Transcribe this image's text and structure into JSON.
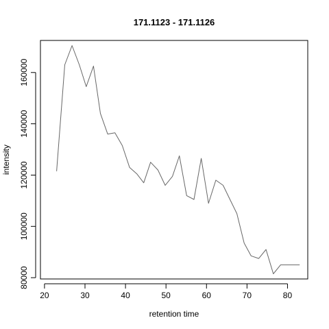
{
  "chart_data": {
    "type": "line",
    "title": "171.1123 - 171.1126",
    "xlabel": "retention time",
    "ylabel": "intensity",
    "xlim": [
      19,
      85
    ],
    "ylim": [
      79500,
      172500
    ],
    "x_ticks": [
      20,
      30,
      40,
      50,
      60,
      70,
      80
    ],
    "y_ticks": [
      80000,
      100000,
      120000,
      140000,
      160000
    ],
    "line_color": "#666666",
    "grid": false,
    "series": [
      {
        "x": [
          23.0,
          25.0,
          26.8,
          28.6,
          30.3,
          32.1,
          33.8,
          35.6,
          37.4,
          39.2,
          41.0,
          42.8,
          44.5,
          46.2,
          48.0,
          49.8,
          51.6,
          53.3,
          55.1,
          56.9,
          58.7,
          60.5,
          62.3,
          64.1,
          65.8,
          67.5,
          69.3,
          71.0,
          72.9,
          74.7,
          76.5,
          78.3,
          80.0,
          81.8,
          83.0
        ],
        "y": [
          121500,
          163000,
          170500,
          163000,
          154500,
          162500,
          144000,
          136000,
          136500,
          131500,
          123000,
          120500,
          117000,
          125000,
          122000,
          116000,
          119500,
          127500,
          112000,
          110500,
          126500,
          109000,
          118000,
          116000,
          110500,
          105000,
          93500,
          88500,
          87500,
          91000,
          81500,
          85000,
          85000,
          85000,
          85000
        ]
      }
    ]
  }
}
